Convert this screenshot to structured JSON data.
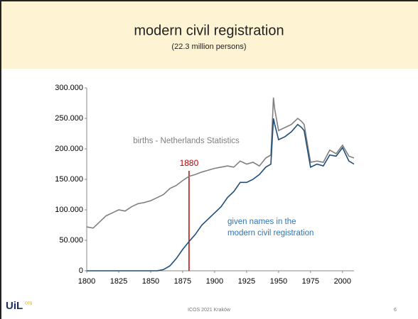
{
  "chart_data": {
    "type": "line",
    "title": "modern civil registration",
    "subtitle": "(22.3 million persons)",
    "x": [
      1800,
      1805,
      1810,
      1815,
      1820,
      1825,
      1830,
      1835,
      1840,
      1845,
      1850,
      1855,
      1860,
      1865,
      1870,
      1875,
      1880,
      1885,
      1890,
      1895,
      1900,
      1905,
      1910,
      1915,
      1920,
      1925,
      1930,
      1935,
      1940,
      1944,
      1946,
      1947,
      1950,
      1955,
      1960,
      1965,
      1968,
      1970,
      1975,
      1980,
      1985,
      1990,
      1995,
      2000,
      2005,
      2009
    ],
    "series": [
      {
        "name": "births - Netherlands Statistics",
        "color": "#808080",
        "values": [
          72000,
          70000,
          80000,
          90000,
          95000,
          100000,
          98000,
          105000,
          110000,
          112000,
          115000,
          120000,
          125000,
          135000,
          140000,
          148000,
          155000,
          158000,
          162000,
          165000,
          168000,
          170000,
          172000,
          170000,
          180000,
          175000,
          178000,
          172000,
          185000,
          190000,
          284000,
          265000,
          230000,
          235000,
          240000,
          250000,
          245000,
          240000,
          178000,
          180000,
          178000,
          198000,
          192000,
          206000,
          188000,
          185000
        ]
      },
      {
        "name": [
          "given names in the",
          "modern civil registration"
        ],
        "color": "#1f4e79",
        "label_color": "#2e75b6",
        "values": [
          0,
          0,
          0,
          0,
          0,
          0,
          0,
          0,
          0,
          0,
          0,
          0,
          2000,
          8000,
          20000,
          35000,
          48000,
          60000,
          75000,
          85000,
          95000,
          105000,
          120000,
          130000,
          145000,
          145000,
          150000,
          158000,
          170000,
          175000,
          250000,
          240000,
          215000,
          220000,
          228000,
          240000,
          235000,
          230000,
          170000,
          175000,
          172000,
          190000,
          188000,
          202000,
          180000,
          175000
        ]
      }
    ],
    "marker_x": 1880,
    "marker_color": "#c00000",
    "xlim": [
      1800,
      2009
    ],
    "xticks": [
      1800,
      1825,
      1850,
      1875,
      1900,
      1925,
      1950,
      1975,
      2000
    ],
    "ylim": [
      0,
      300000
    ],
    "yticks": [
      0,
      {
        "value": 50000,
        "label": "50.000"
      },
      {
        "value": 100000,
        "label": "100.000"
      },
      {
        "value": 150000,
        "label": "150.000"
      },
      {
        "value": 200000,
        "label": "200.000"
      },
      {
        "value": 250000,
        "label": "250.000"
      },
      {
        "value": 300000,
        "label": "300.000"
      }
    ]
  },
  "footer": {
    "center": "ICOS 2021 Kraków",
    "page": "6",
    "logo": "UiL",
    "logo_sub": "OTS"
  }
}
